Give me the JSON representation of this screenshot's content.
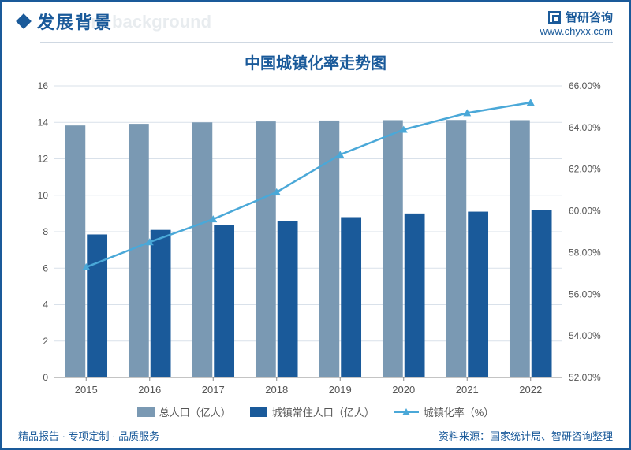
{
  "header": {
    "title": "发展背景",
    "watermark_sub": "ent background",
    "brand_name": "智研咨询",
    "brand_url": "www.chyxx.com"
  },
  "chart": {
    "type": "bar+line",
    "title": "中国城镇化率走势图",
    "categories": [
      "2015",
      "2016",
      "2017",
      "2018",
      "2019",
      "2020",
      "2021",
      "2022"
    ],
    "series": {
      "total_pop": {
        "label": "总人口（亿人）",
        "color": "#7a99b3",
        "values": [
          13.83,
          13.92,
          14.0,
          14.05,
          14.1,
          14.12,
          14.13,
          14.12
        ]
      },
      "urban_pop": {
        "label": "城镇常住人口（亿人）",
        "color": "#1a5a9a",
        "values": [
          7.85,
          8.1,
          8.35,
          8.6,
          8.8,
          9.0,
          9.1,
          9.2
        ]
      },
      "urban_rate": {
        "label": "城镇化率（%）",
        "color": "#4aa8d8",
        "marker": "triangle",
        "values": [
          57.3,
          58.5,
          59.6,
          60.9,
          62.7,
          63.9,
          64.7,
          65.2
        ]
      }
    },
    "left_axis": {
      "min": 0,
      "max": 16,
      "step": 2,
      "label_fontsize": 12
    },
    "right_axis": {
      "min": 52,
      "max": 66,
      "step": 2,
      "fmt_suffix": ".00%",
      "label_fontsize": 12
    },
    "grid_color": "#d9e1ea",
    "axis_color": "#888",
    "background": "#ffffff",
    "bar_width": 0.32,
    "title_fontsize": 20,
    "legend_fontsize": 13
  },
  "footer": {
    "left": "精品报告 · 专项定制 · 品质服务",
    "right": "资料来源：国家统计局、智研咨询整理"
  }
}
